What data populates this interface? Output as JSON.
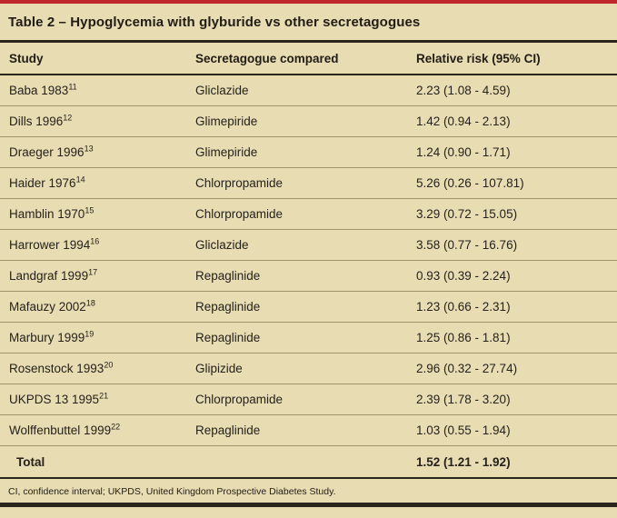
{
  "title": "Table 2 – Hypoglycemia with glyburide vs other secretagogues",
  "columns": [
    "Study",
    "Secretagogue compared",
    "Relative risk (95% CI)"
  ],
  "rows": [
    {
      "study": "Baba 1983",
      "ref": "11",
      "drug": "Gliclazide",
      "rr": "2.23 (1.08 - 4.59)"
    },
    {
      "study": "Dills 1996",
      "ref": "12",
      "drug": "Glimepiride",
      "rr": "1.42 (0.94 - 2.13)"
    },
    {
      "study": "Draeger 1996",
      "ref": "13",
      "drug": "Glimepiride",
      "rr": "1.24 (0.90 - 1.71)"
    },
    {
      "study": "Haider 1976",
      "ref": "14",
      "drug": "Chlorpropamide",
      "rr": "5.26 (0.26 - 107.81)"
    },
    {
      "study": "Hamblin 1970",
      "ref": "15",
      "drug": "Chlorpropamide",
      "rr": "3.29 (0.72 - 15.05)"
    },
    {
      "study": "Harrower 1994",
      "ref": "16",
      "drug": "Gliclazide",
      "rr": "3.58 (0.77 - 16.76)"
    },
    {
      "study": "Landgraf 1999",
      "ref": "17",
      "drug": "Repaglinide",
      "rr": "0.93 (0.39 - 2.24)"
    },
    {
      "study": "Mafauzy 2002",
      "ref": "18",
      "drug": "Repaglinide",
      "rr": "1.23 (0.66 - 2.31)"
    },
    {
      "study": "Marbury 1999",
      "ref": "19",
      "drug": "Repaglinide",
      "rr": "1.25 (0.86 - 1.81)"
    },
    {
      "study": "Rosenstock 1993",
      "ref": "20",
      "drug": "Glipizide",
      "rr": "2.96 (0.32 - 27.74)"
    },
    {
      "study": "UKPDS 13 1995",
      "ref": "21",
      "drug": "Chlorpropamide",
      "rr": "2.39 (1.78 - 3.20)"
    },
    {
      "study": "Wolffenbuttel 1999",
      "ref": "22",
      "drug": "Repaglinide",
      "rr": "1.03 (0.55 - 1.94)"
    }
  ],
  "total": {
    "label": "Total",
    "rr": "1.52 (1.21 - 1.92)"
  },
  "footnote": "CI, confidence interval; UKPDS, United Kingdom Prospective Diabetes Study.",
  "colors": {
    "background": "#e8ddb2",
    "accent_red": "#c0272d",
    "rule_dark": "#2a251d",
    "rule_light": "#a2956c",
    "text": "#211c14"
  }
}
